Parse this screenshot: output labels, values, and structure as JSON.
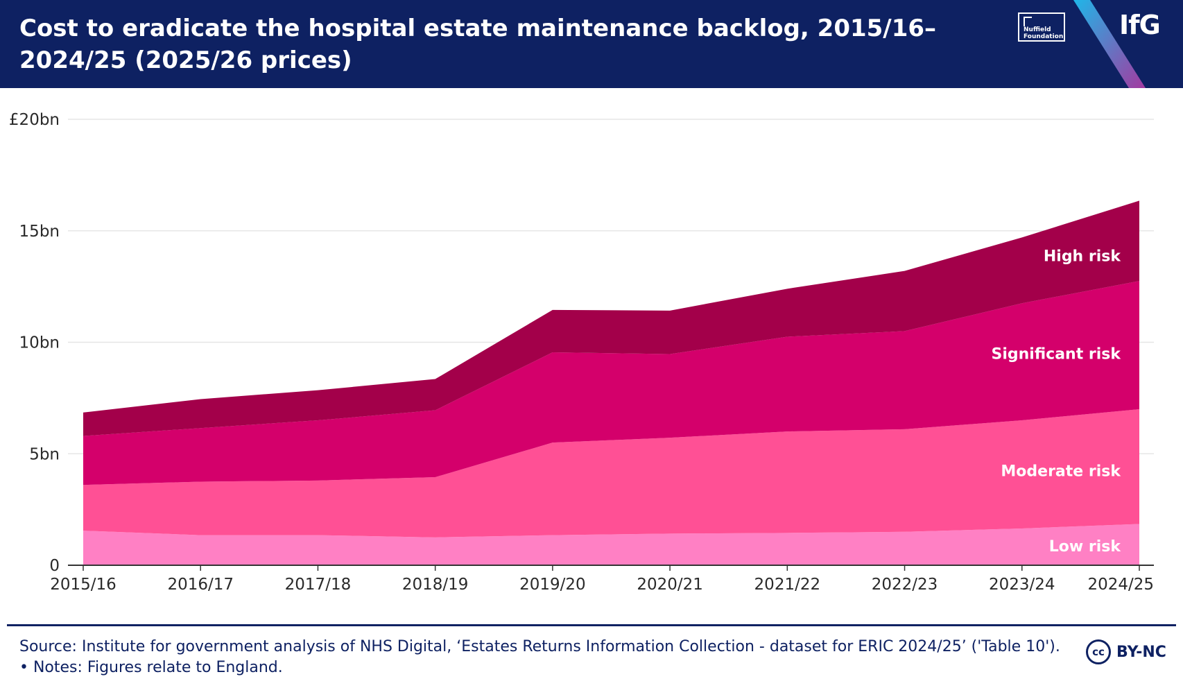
{
  "header": {
    "title": "Cost to eradicate the hospital estate maintenance backlog, 2015/16–2024/25 (2025/26 prices)",
    "logo_nuffield_line1": "Nuffield",
    "logo_nuffield_line2": "Foundation",
    "logo_ifg": "IfG"
  },
  "chart_data": {
    "type": "area",
    "stacked": true,
    "title": "Cost to eradicate the hospital estate maintenance backlog, 2015/16–2024/25 (2025/26 prices)",
    "categories": [
      "2015/16",
      "2016/17",
      "2017/18",
      "2018/19",
      "2019/20",
      "2020/21",
      "2021/22",
      "2022/23",
      "2023/24",
      "2024/25"
    ],
    "y_ticks": [
      {
        "value": 0,
        "label": "0"
      },
      {
        "value": 5,
        "label": "5bn"
      },
      {
        "value": 10,
        "label": "10bn"
      },
      {
        "value": 15,
        "label": "15bn"
      },
      {
        "value": 20,
        "label": "£20bn"
      }
    ],
    "ylim": [
      0,
      20
    ],
    "grid": true,
    "series": [
      {
        "name": "Low risk",
        "color": "#ff80c4",
        "values": [
          1.55,
          1.35,
          1.35,
          1.25,
          1.35,
          1.42,
          1.45,
          1.5,
          1.65,
          1.85
        ]
      },
      {
        "name": "Moderate risk",
        "color": "#ff5095",
        "values": [
          2.05,
          2.4,
          2.45,
          2.7,
          4.15,
          4.3,
          4.55,
          4.6,
          4.85,
          5.15
        ]
      },
      {
        "name": "Significant risk",
        "color": "#d4006b",
        "values": [
          2.2,
          2.4,
          2.7,
          3.0,
          4.05,
          3.75,
          4.25,
          4.4,
          5.25,
          5.75
        ]
      },
      {
        "name": "High risk",
        "color": "#a3004a",
        "values": [
          1.05,
          1.3,
          1.35,
          1.4,
          1.9,
          1.95,
          2.15,
          2.7,
          2.95,
          3.6
        ]
      }
    ]
  },
  "footer": {
    "note": "Source: Institute for government analysis of NHS Digital, ‘Estates Returns Information Collection - dataset for ERIC 2024/25’ ('Table 10'). • Notes: Figures relate to England.",
    "cc_icon_text": "cc",
    "license": "BY-NC"
  }
}
